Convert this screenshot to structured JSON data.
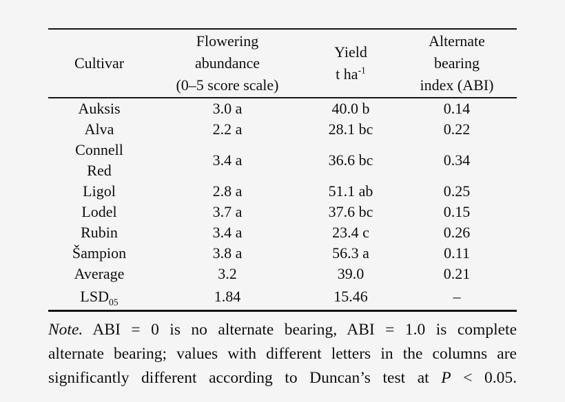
{
  "colors": {
    "background": "#f5f5f5",
    "text": "#0e0e0e",
    "rule": "#141414"
  },
  "table": {
    "header": {
      "cultivar": "Cultivar",
      "flowering": "Flowering\nabundance\n(0–5 score scale)",
      "yield_line1": "Yield",
      "yield_unit_base": "t ha",
      "yield_unit_sup": "-1",
      "abi": "Alternate\nbearing\nindex (ABI)"
    },
    "rows": [
      {
        "cultivar": "Auksis",
        "flowering": "3.0 a",
        "yield": "40.0 b",
        "abi": "0.14"
      },
      {
        "cultivar": "Alva",
        "flowering": "2.2 a",
        "yield": "28.1 bc",
        "abi": "0.22"
      },
      {
        "cultivar": "Connell\nRed",
        "flowering": "3.4 a",
        "yield": "36.6 bc",
        "abi": "0.34"
      },
      {
        "cultivar": "Ligol",
        "flowering": "2.8 a",
        "yield": "51.1 ab",
        "abi": "0.25"
      },
      {
        "cultivar": "Lodel",
        "flowering": "3.7 a",
        "yield": "37.6 bc",
        "abi": "0.15"
      },
      {
        "cultivar": "Rubin",
        "flowering": "3.4 a",
        "yield": "23.4 c",
        "abi": "0.26"
      },
      {
        "cultivar": "Šampion",
        "flowering": "3.8 a",
        "yield": "56.3 a",
        "abi": "0.11"
      },
      {
        "cultivar": "Average",
        "flowering": "3.2",
        "yield": "39.0",
        "abi": "0.21"
      }
    ],
    "lsd_row": {
      "label_base": "LSD",
      "label_sub": "05",
      "flowering": "1.84",
      "yield": "15.46",
      "abi": "–"
    }
  },
  "note": {
    "lines": [
      {
        "segments": [
          {
            "text": "Note.",
            "italic": true
          },
          {
            "text": " ABI = 0 is no alternate bearing, ABI = 1.0 is complete",
            "italic": false
          }
        ]
      },
      {
        "segments": [
          {
            "text": "alternate bearing; values with different letters in the columns are",
            "italic": false
          }
        ]
      },
      {
        "segments": [
          {
            "text": "significantly different according to Duncan’s test at ",
            "italic": false
          },
          {
            "text": "P",
            "italic": true
          },
          {
            "text": " < 0.05.",
            "italic": false
          }
        ]
      }
    ]
  }
}
